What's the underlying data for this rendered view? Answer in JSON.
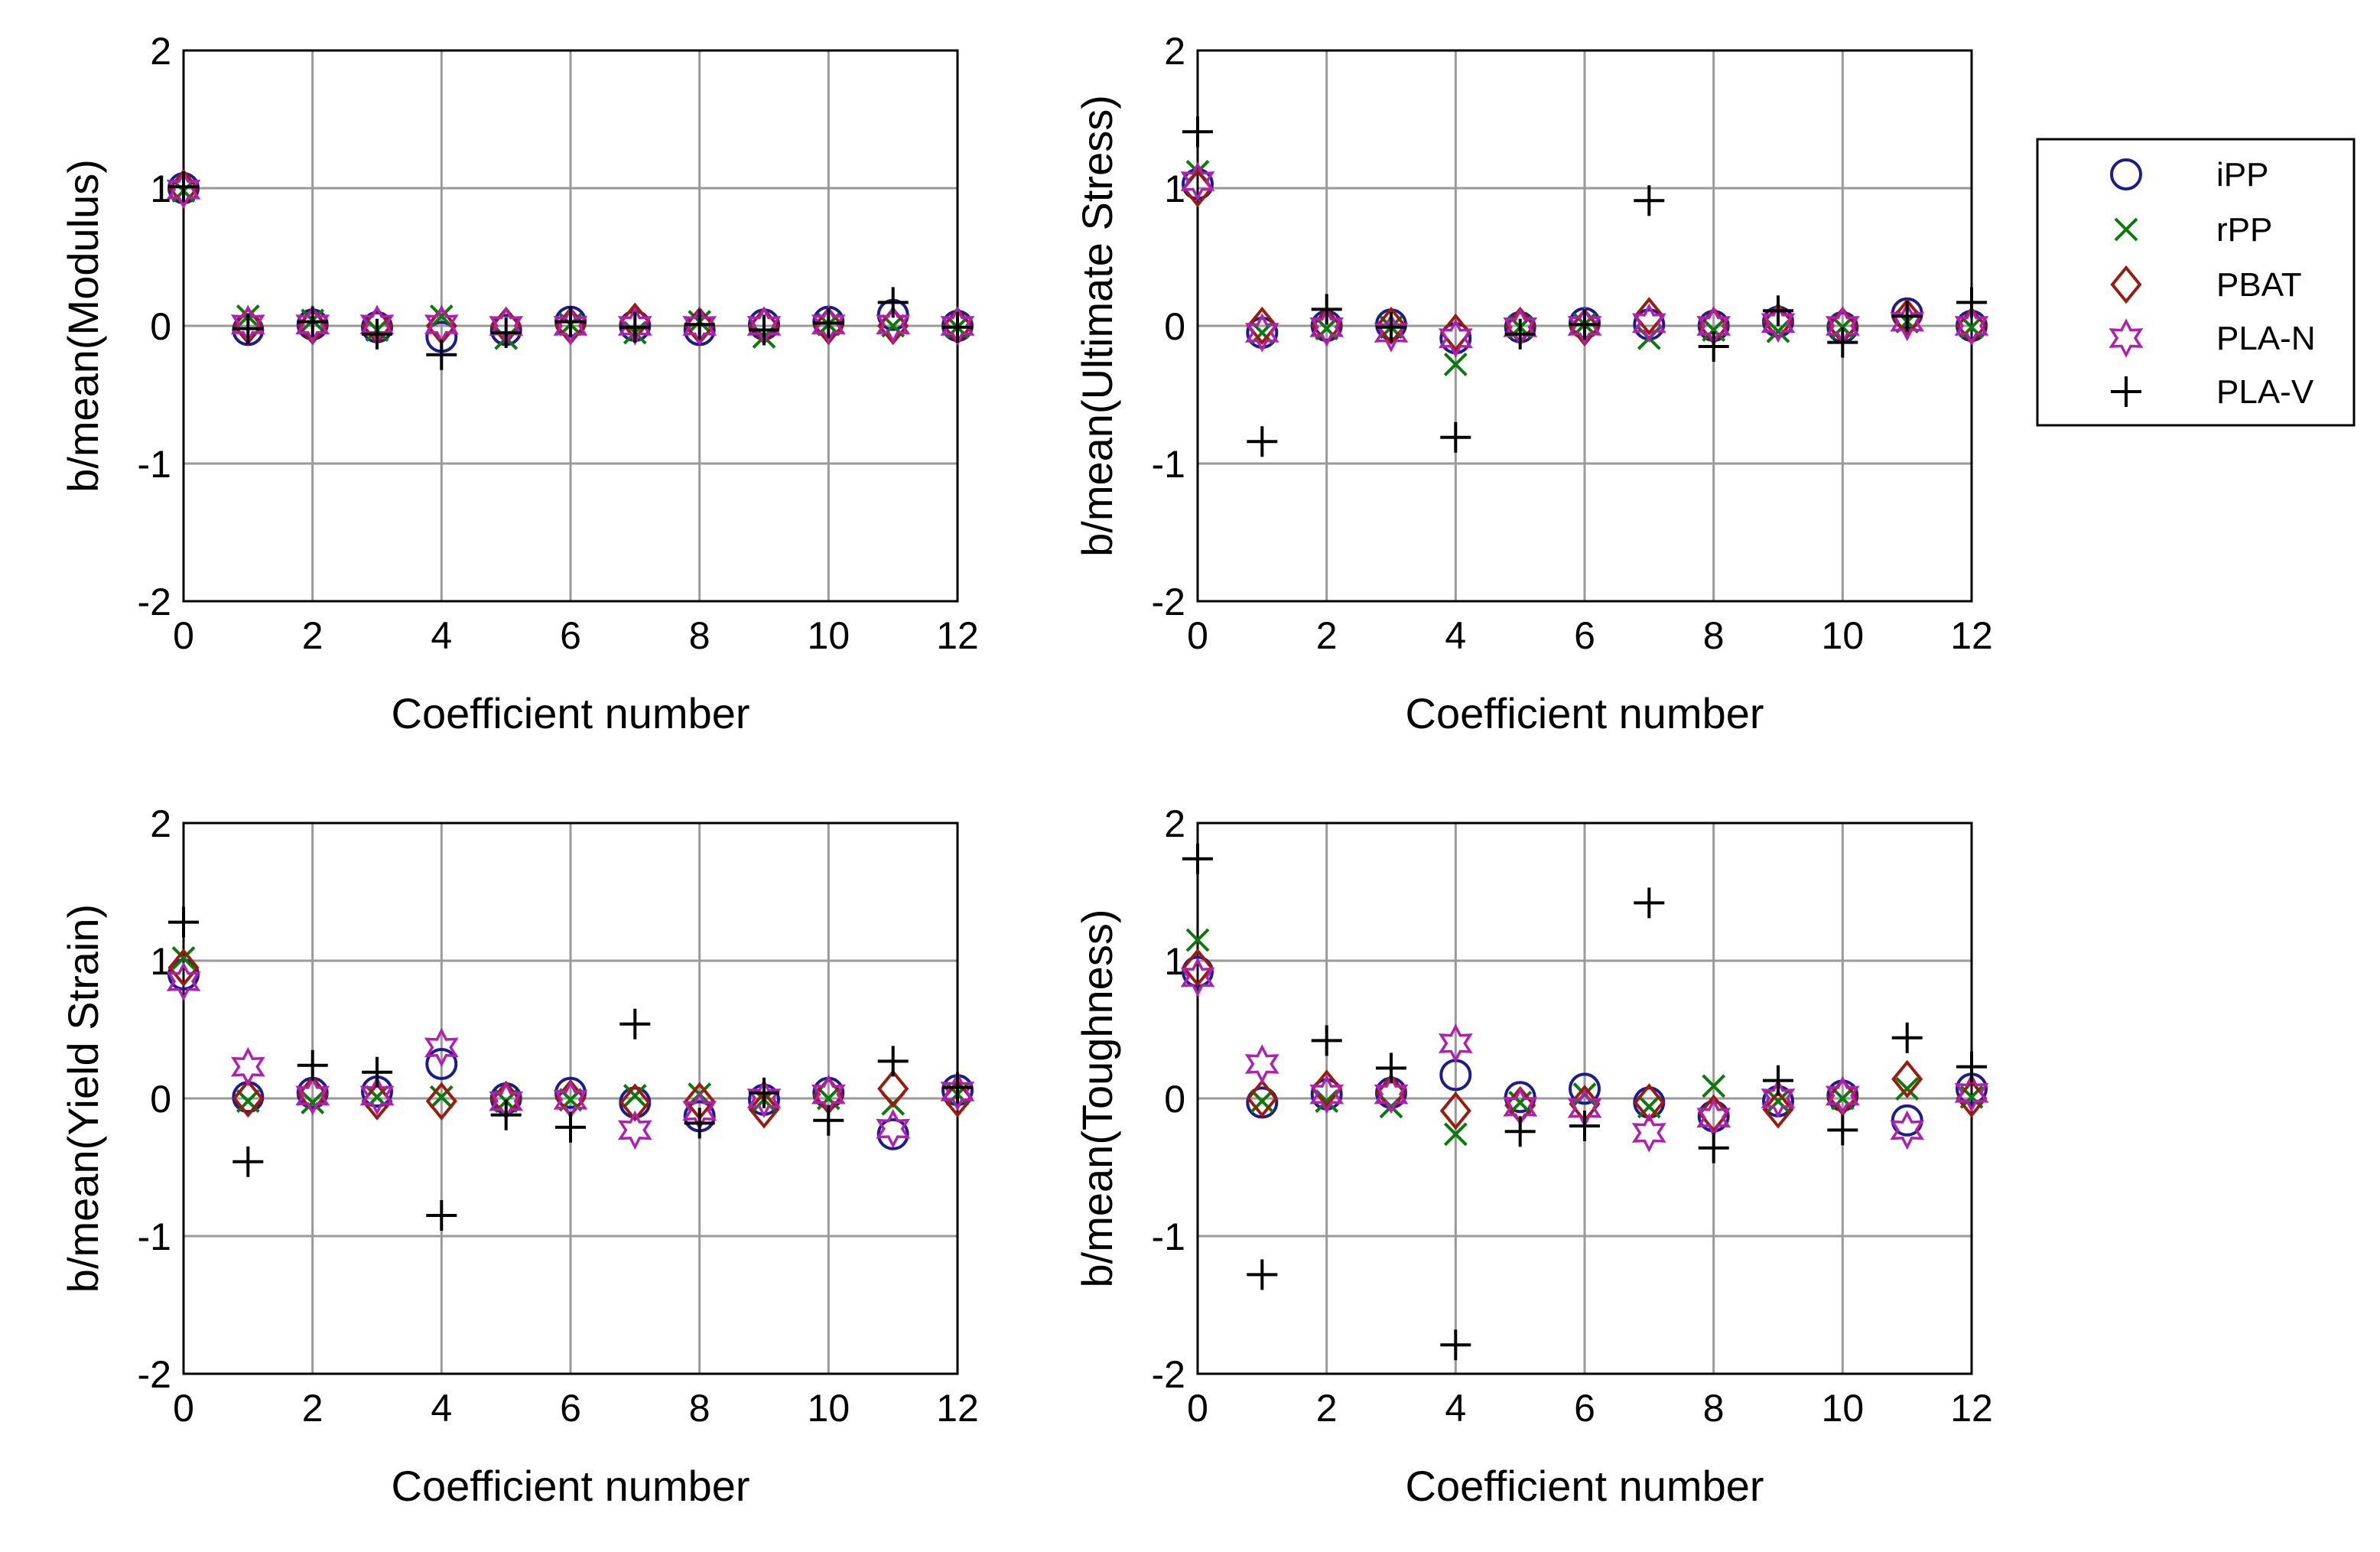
{
  "figure": {
    "legend": {
      "placement": "right",
      "entries": [
        {
          "name": "iPP",
          "marker": "circle",
          "color": "#1c1c8c"
        },
        {
          "name": "rPP",
          "marker": "x",
          "color": "#0a7a0a"
        },
        {
          "name": "PBAT",
          "marker": "diamond",
          "color": "#9b1b0e"
        },
        {
          "name": "PLA-N",
          "marker": "star",
          "color": "#b020b0"
        },
        {
          "name": "PLA-V",
          "marker": "plus",
          "color": "#000000"
        }
      ]
    }
  },
  "chart_data": [
    {
      "type": "scatter",
      "position": "top-left",
      "xlabel": "Coefficient number",
      "ylabel": "b/mean(Modulus)",
      "xlim": [
        0,
        12
      ],
      "ylim": [
        -2,
        2
      ],
      "xticks": [
        0,
        2,
        4,
        6,
        8,
        10,
        12
      ],
      "yticks": [
        -2,
        -1,
        0,
        1,
        2
      ],
      "grid": true,
      "series": [
        {
          "name": "iPP",
          "x": [
            0,
            1,
            2,
            3,
            4,
            5,
            6,
            7,
            8,
            9,
            10,
            11,
            12
          ],
          "values": [
            1.0,
            -0.03,
            0.01,
            -0.01,
            -0.08,
            -0.03,
            0.03,
            0.0,
            -0.03,
            0.01,
            0.03,
            0.08,
            0.0
          ]
        },
        {
          "name": "rPP",
          "x": [
            0,
            1,
            2,
            3,
            4,
            5,
            6,
            7,
            8,
            9,
            10,
            11,
            12
          ],
          "values": [
            0.98,
            0.07,
            0.04,
            -0.03,
            0.07,
            -0.09,
            0.01,
            -0.05,
            0.03,
            -0.08,
            0.01,
            0.0,
            -0.01
          ]
        },
        {
          "name": "PBAT",
          "x": [
            0,
            1,
            2,
            3,
            4,
            5,
            6,
            7,
            8,
            9,
            10,
            11,
            12
          ],
          "values": [
            1.0,
            0.0,
            0.0,
            0.0,
            0.0,
            0.0,
            0.0,
            0.03,
            0.0,
            0.0,
            0.0,
            0.0,
            0.0
          ]
        },
        {
          "name": "PLA-N",
          "x": [
            0,
            1,
            2,
            3,
            4,
            5,
            6,
            7,
            8,
            9,
            10,
            11,
            12
          ],
          "values": [
            0.99,
            0.01,
            0.01,
            0.01,
            0.01,
            0.0,
            0.0,
            0.0,
            0.0,
            0.0,
            0.01,
            0.01,
            0.0
          ]
        },
        {
          "name": "PLA-V",
          "x": [
            0,
            1,
            2,
            3,
            4,
            5,
            6,
            7,
            8,
            9,
            10,
            11,
            12
          ],
          "values": [
            1.01,
            -0.02,
            0.03,
            -0.06,
            -0.21,
            -0.05,
            0.03,
            -0.01,
            0.01,
            -0.03,
            0.02,
            0.17,
            -0.01
          ]
        }
      ]
    },
    {
      "type": "scatter",
      "position": "top-right",
      "xlabel": "Coefficient number",
      "ylabel": "b/mean(Ultimate Stress)",
      "xlim": [
        0,
        12
      ],
      "ylim": [
        -2,
        2
      ],
      "xticks": [
        0,
        2,
        4,
        6,
        8,
        10,
        12
      ],
      "yticks": [
        -2,
        -1,
        0,
        1,
        2
      ],
      "grid": true,
      "series": [
        {
          "name": "iPP",
          "x": [
            0,
            1,
            2,
            3,
            4,
            5,
            6,
            7,
            8,
            9,
            10,
            11,
            12
          ],
          "values": [
            1.03,
            -0.05,
            0.0,
            0.01,
            -0.09,
            -0.01,
            0.02,
            0.01,
            0.0,
            0.03,
            -0.01,
            0.09,
            0.0
          ]
        },
        {
          "name": "rPP",
          "x": [
            0,
            1,
            2,
            3,
            4,
            5,
            6,
            7,
            8,
            9,
            10,
            11,
            12
          ],
          "values": [
            1.12,
            -0.05,
            -0.02,
            -0.01,
            -0.28,
            -0.01,
            0.01,
            -0.09,
            -0.03,
            -0.04,
            -0.01,
            0.03,
            -0.01
          ]
        },
        {
          "name": "PBAT",
          "x": [
            0,
            1,
            2,
            3,
            4,
            5,
            6,
            7,
            8,
            9,
            10,
            11,
            12
          ],
          "values": [
            1.0,
            0.0,
            0.0,
            0.0,
            -0.05,
            0.0,
            -0.01,
            0.07,
            0.0,
            0.03,
            0.0,
            0.06,
            0.0
          ]
        },
        {
          "name": "PLA-N",
          "x": [
            0,
            1,
            2,
            3,
            4,
            5,
            6,
            7,
            8,
            9,
            10,
            11,
            12
          ],
          "values": [
            1.05,
            -0.05,
            -0.01,
            -0.05,
            -0.09,
            -0.01,
            0.0,
            0.02,
            0.0,
            0.02,
            0.0,
            0.03,
            0.0
          ]
        },
        {
          "name": "PLA-V",
          "x": [
            0,
            1,
            2,
            3,
            4,
            5,
            6,
            7,
            8,
            9,
            10,
            11,
            12
          ],
          "values": [
            1.41,
            -0.84,
            0.12,
            -0.01,
            -0.81,
            -0.06,
            0.01,
            0.91,
            -0.15,
            0.11,
            -0.12,
            0.07,
            0.17
          ]
        }
      ]
    },
    {
      "type": "scatter",
      "position": "bottom-left",
      "xlabel": "Coefficient number",
      "ylabel": "b/mean(Yield Strain)",
      "xlim": [
        0,
        12
      ],
      "ylim": [
        -2,
        2
      ],
      "xticks": [
        0,
        2,
        4,
        6,
        8,
        10,
        12
      ],
      "yticks": [
        -2,
        -1,
        0,
        1,
        2
      ],
      "grid": true,
      "series": [
        {
          "name": "iPP",
          "x": [
            0,
            1,
            2,
            3,
            4,
            5,
            6,
            7,
            8,
            9,
            10,
            11,
            12
          ],
          "values": [
            0.9,
            0.01,
            0.04,
            0.05,
            0.25,
            0.0,
            0.04,
            -0.03,
            -0.13,
            -0.01,
            0.04,
            -0.26,
            0.06
          ]
        },
        {
          "name": "rPP",
          "x": [
            0,
            1,
            2,
            3,
            4,
            5,
            6,
            7,
            8,
            9,
            10,
            11,
            12
          ],
          "values": [
            1.02,
            -0.02,
            -0.03,
            0.01,
            0.01,
            -0.02,
            -0.01,
            0.02,
            0.03,
            -0.01,
            0.0,
            -0.04,
            0.03
          ]
        },
        {
          "name": "PBAT",
          "x": [
            0,
            1,
            2,
            3,
            4,
            5,
            6,
            7,
            8,
            9,
            10,
            11,
            12
          ],
          "values": [
            0.95,
            0.0,
            0.03,
            -0.02,
            -0.02,
            -0.01,
            0.0,
            -0.03,
            -0.02,
            -0.08,
            0.02,
            0.07,
            0.0
          ]
        },
        {
          "name": "PLA-N",
          "x": [
            0,
            1,
            2,
            3,
            4,
            5,
            6,
            7,
            8,
            9,
            10,
            11,
            12
          ],
          "values": [
            0.85,
            0.23,
            0.02,
            0.02,
            0.37,
            -0.02,
            -0.01,
            -0.23,
            -0.09,
            0.0,
            0.03,
            -0.22,
            0.05
          ]
        },
        {
          "name": "PLA-V",
          "x": [
            0,
            1,
            2,
            3,
            4,
            5,
            6,
            7,
            8,
            9,
            10,
            11,
            12
          ],
          "values": [
            1.28,
            -0.46,
            0.24,
            0.19,
            -0.85,
            -0.12,
            -0.21,
            0.54,
            -0.18,
            0.04,
            -0.16,
            0.27,
            0.08
          ]
        }
      ]
    },
    {
      "type": "scatter",
      "position": "bottom-right",
      "xlabel": "Coefficient number",
      "ylabel": "b/mean(Toughness)",
      "xlim": [
        0,
        12
      ],
      "ylim": [
        -2,
        2
      ],
      "xticks": [
        0,
        2,
        4,
        6,
        8,
        10,
        12
      ],
      "yticks": [
        -2,
        -1,
        0,
        1,
        2
      ],
      "grid": true,
      "series": [
        {
          "name": "iPP",
          "x": [
            0,
            1,
            2,
            3,
            4,
            5,
            6,
            7,
            8,
            9,
            10,
            11,
            12
          ],
          "values": [
            0.92,
            -0.03,
            0.03,
            0.04,
            0.17,
            0.01,
            0.07,
            -0.03,
            -0.13,
            -0.02,
            0.02,
            -0.16,
            0.07
          ]
        },
        {
          "name": "rPP",
          "x": [
            0,
            1,
            2,
            3,
            4,
            5,
            6,
            7,
            8,
            9,
            10,
            11,
            12
          ],
          "values": [
            1.15,
            -0.02,
            -0.02,
            -0.06,
            -0.26,
            -0.03,
            0.03,
            -0.06,
            0.09,
            -0.02,
            0.0,
            0.07,
            0.01
          ]
        },
        {
          "name": "PBAT",
          "x": [
            0,
            1,
            2,
            3,
            4,
            5,
            6,
            7,
            8,
            9,
            10,
            11,
            12
          ],
          "values": [
            0.95,
            0.0,
            0.07,
            0.04,
            -0.09,
            -0.05,
            -0.04,
            -0.03,
            -0.11,
            -0.08,
            0.01,
            0.14,
            0.0
          ]
        },
        {
          "name": "PLA-N",
          "x": [
            0,
            1,
            2,
            3,
            4,
            5,
            6,
            7,
            8,
            9,
            10,
            11,
            12
          ],
          "values": [
            0.88,
            0.25,
            0.03,
            0.03,
            0.4,
            -0.06,
            -0.07,
            -0.25,
            -0.14,
            0.0,
            0.02,
            -0.23,
            0.04
          ]
        },
        {
          "name": "PLA-V",
          "x": [
            0,
            1,
            2,
            3,
            4,
            5,
            6,
            7,
            8,
            9,
            10,
            11,
            12
          ],
          "values": [
            1.74,
            -1.28,
            0.42,
            0.22,
            -1.79,
            -0.24,
            -0.2,
            1.42,
            -0.36,
            0.13,
            -0.23,
            0.44,
            0.23
          ]
        }
      ]
    }
  ]
}
